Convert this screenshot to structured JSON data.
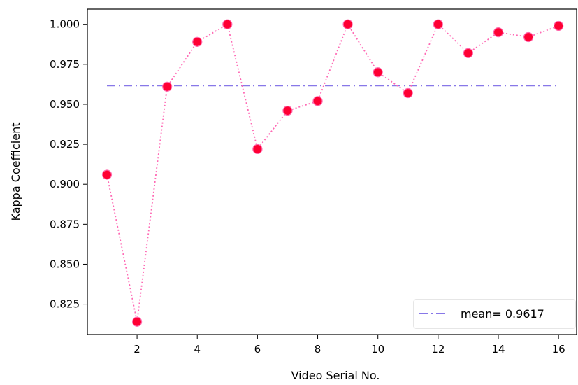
{
  "chart_data": {
    "type": "line",
    "xlabel": "Video Serial No.",
    "ylabel": "Kappa Coefficient",
    "xlim": [
      0.35,
      16.6
    ],
    "ylim": [
      0.806,
      1.0095
    ],
    "xticks": [
      2,
      4,
      6,
      8,
      10,
      12,
      14,
      16
    ],
    "xtick_labels": [
      "2",
      "4",
      "6",
      "8",
      "10",
      "12",
      "14",
      "16"
    ],
    "yticks": [
      0.825,
      0.85,
      0.875,
      0.9,
      0.925,
      0.95,
      0.975,
      1.0
    ],
    "ytick_labels": [
      "0.825",
      "0.850",
      "0.875",
      "0.900",
      "0.925",
      "0.950",
      "0.975",
      "1.000"
    ],
    "grid": false,
    "series": [
      {
        "style": "dotted line with circle markers",
        "color": "#ff69b4",
        "marker_color": "#ff0033",
        "x": [
          1,
          2,
          3,
          4,
          5,
          6,
          7,
          8,
          9,
          10,
          11,
          12,
          13,
          14,
          15,
          16
        ],
        "y": [
          0.906,
          0.814,
          0.961,
          0.989,
          1.0,
          0.922,
          0.946,
          0.952,
          1.0,
          0.97,
          0.957,
          1.0,
          0.982,
          0.995,
          0.992,
          0.999
        ]
      }
    ],
    "mean_line": {
      "name": "mean= 0.9617",
      "value": 0.9617,
      "x_range": [
        1,
        16
      ],
      "style": "dash-dot",
      "color": "#8878e8"
    },
    "legend": {
      "placement": "lower-right",
      "entries": [
        "mean= 0.9617"
      ]
    }
  }
}
